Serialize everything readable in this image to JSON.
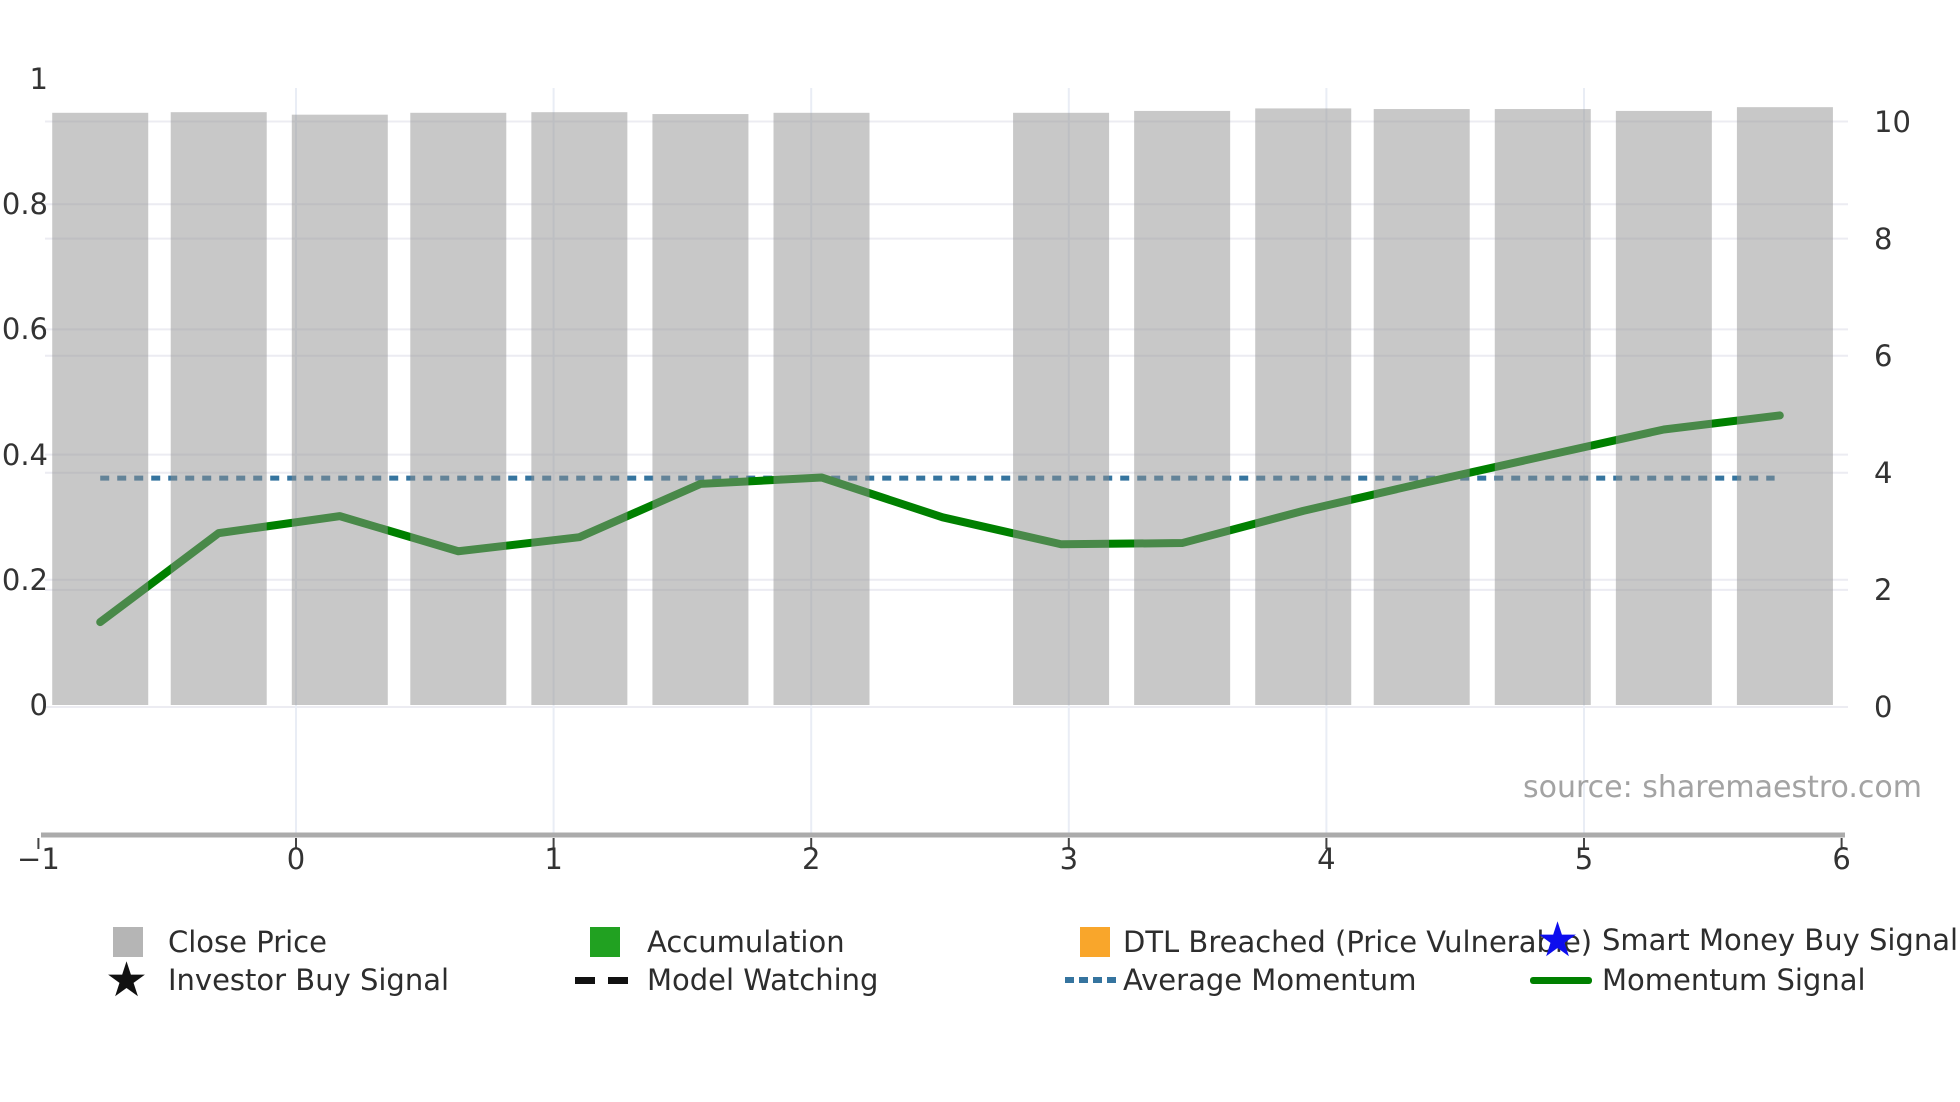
{
  "source_note": "source: sharemaestro.com",
  "colors": {
    "close_price_bar": "rgba(146,146,146,0.5)",
    "close_price_bar_over_white": "#c9c9c9",
    "legend_gray_swatch": "#b5b5b5",
    "accumulation_green": "#21A121",
    "dtl_breached_orange": "#F9A62B",
    "smart_money_star_blue": "#0D0DEE",
    "investor_star_black": "#111111",
    "model_watching_black": "#111111",
    "average_momentum_blue": "#35749F",
    "momentum_signal_green": "#008000",
    "h_gridline": "#ececf2",
    "v_gridline": "#e9edf5",
    "axis_spine": "#ababab",
    "tick_mark": "#444444",
    "axis_text": "#333333",
    "source_text": "#a3a3a3"
  },
  "legend": {
    "items": [
      {
        "label": "Close Price",
        "marker": "gray-square"
      },
      {
        "label": "Accumulation",
        "marker": "green-square"
      },
      {
        "label": "DTL Breached (Price Vulnerable)",
        "marker": "orange-square"
      },
      {
        "label": "Smart Money Buy Signal",
        "marker": "blue-star"
      },
      {
        "label": "Investor Buy Signal",
        "marker": "black-star"
      },
      {
        "label": "Model Watching",
        "marker": "black-dashed-line"
      },
      {
        "label": "Average Momentum",
        "marker": "blue-dotted-line"
      },
      {
        "label": "Momentum Signal",
        "marker": "green-solid-line"
      }
    ]
  },
  "chart_data": {
    "type": "bar",
    "subtype": "dual-axis bar + line",
    "title": "",
    "grid": true,
    "legend_position": "bottom",
    "x_axis": {
      "tick_labels": [
        "−1",
        "0",
        "1",
        "2",
        "3",
        "4",
        "5",
        "6"
      ],
      "tick_values": [
        -1,
        0,
        1,
        2,
        3,
        4,
        5,
        6
      ],
      "gridline_ticks": [
        0,
        1,
        2,
        3,
        4,
        5
      ]
    },
    "left_y_axis": {
      "tick_labels": [
        "0",
        "0.2",
        "0.4",
        "0.6",
        "0.8",
        "1"
      ],
      "tick_values": [
        0,
        0.2,
        0.4,
        0.6,
        0.8,
        1
      ],
      "gridline_values": [
        0.2,
        0.4,
        0.6,
        0.8
      ]
    },
    "right_y_axis": {
      "tick_labels": [
        "0",
        "2",
        "4",
        "6",
        "8",
        "10"
      ],
      "tick_values": [
        0,
        2,
        4,
        6,
        8,
        10
      ],
      "gridline_values": [
        0,
        2,
        4,
        6,
        8,
        10
      ]
    },
    "series": [
      {
        "name": "Close Price",
        "type": "bar",
        "axis": "left",
        "x": [
          -0.76,
          -0.3,
          0.17,
          0.63,
          1.1,
          1.57,
          2.04,
          2.97,
          3.44,
          3.91,
          4.37,
          4.84,
          5.31,
          5.78
        ],
        "values": [
          0.946,
          0.947,
          0.943,
          0.946,
          0.947,
          0.944,
          0.946,
          0.946,
          0.949,
          0.953,
          0.952,
          0.952,
          0.949,
          0.955
        ],
        "note": "bar missing at slot x≈2.51"
      },
      {
        "name": "Momentum Signal",
        "type": "line",
        "axis": "right",
        "x": [
          -0.76,
          -0.3,
          0.17,
          0.63,
          1.1,
          1.57,
          2.04,
          2.51,
          2.97,
          3.44,
          3.91,
          4.37,
          4.84,
          5.31,
          5.76
        ],
        "values": [
          1.45,
          2.97,
          3.26,
          2.66,
          2.9,
          3.81,
          3.92,
          3.24,
          2.78,
          2.8,
          3.35,
          3.82,
          4.28,
          4.74,
          4.98
        ]
      },
      {
        "name": "Average Momentum",
        "type": "horizontal-dotted-line",
        "axis": "right",
        "value": 3.91,
        "x_start": -0.76,
        "x_end": 5.74
      }
    ]
  }
}
